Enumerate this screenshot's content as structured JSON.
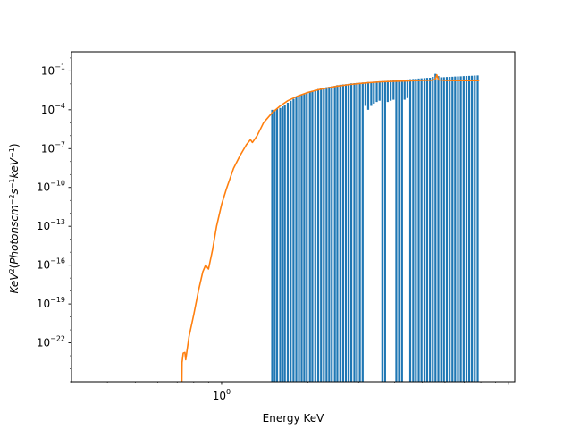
{
  "chart_data": {
    "type": "line",
    "xlabel": "Energy KeV",
    "ylabel": {
      "parts": [
        {
          "t": "KeV",
          "it": true
        },
        {
          "t": "2",
          "sup": true
        },
        {
          "t": "(",
          "it": false
        },
        {
          "t": "Photonscm",
          "it": true
        },
        {
          "t": "−2",
          "sup": true
        },
        {
          "t": "s",
          "it": true
        },
        {
          "t": "−1",
          "sup": true
        },
        {
          "t": "keV",
          "it": true
        },
        {
          "t": "−1",
          "sup": true
        },
        {
          "t": ")",
          "it": false
        }
      ]
    },
    "x_scale": "log",
    "y_scale": "log",
    "xlim": [
      0.3,
      10.5
    ],
    "ylim": [
      1e-25,
      3
    ],
    "x_ticks": [
      {
        "value": 1,
        "base": "10",
        "exp": "0"
      }
    ],
    "y_ticks": [
      {
        "value": 1e-22,
        "base": "10",
        "exp": "−22"
      },
      {
        "value": 1e-19,
        "base": "10",
        "exp": "−19"
      },
      {
        "value": 1e-16,
        "base": "10",
        "exp": "−16"
      },
      {
        "value": 1e-13,
        "base": "10",
        "exp": "−13"
      },
      {
        "value": 1e-10,
        "base": "10",
        "exp": "−10"
      },
      {
        "value": 1e-07,
        "base": "10",
        "exp": "−7"
      },
      {
        "value": 0.0001,
        "base": "10",
        "exp": "−4"
      },
      {
        "value": 0.1,
        "base": "10",
        "exp": "−1"
      }
    ],
    "grid": false,
    "colors": {
      "data": "#1f77b4",
      "model": "#ff7f0e"
    },
    "series": [
      {
        "kind": "error_bars",
        "x": [
          1.5,
          1.53,
          1.56,
          1.6,
          1.63,
          1.66,
          1.7,
          1.74,
          1.78,
          1.82,
          1.86,
          1.9,
          1.94,
          1.98,
          2.03,
          2.07,
          2.12,
          2.17,
          2.22,
          2.27,
          2.32,
          2.37,
          2.42,
          2.48,
          2.53,
          2.59,
          2.65,
          2.71,
          2.77,
          2.83,
          2.9,
          2.96,
          3.03,
          3.1,
          3.17,
          3.24,
          3.32,
          3.39,
          3.47,
          3.55,
          3.63,
          3.71,
          3.79,
          3.88,
          3.97,
          4.06,
          4.15,
          4.25,
          4.34,
          4.44,
          4.54,
          4.65,
          4.75,
          4.86,
          4.97,
          5.09,
          5.2,
          5.32,
          5.44,
          5.56,
          5.69,
          5.82,
          5.95,
          6.09,
          6.23,
          6.37,
          6.51,
          6.66,
          6.81,
          6.97,
          7.13,
          7.29,
          7.45,
          7.62,
          7.8
        ],
        "top": [
          0.0001,
          0.0001,
          0.00012,
          0.00014,
          0.00018,
          0.00025,
          0.00035,
          0.0005,
          0.0007,
          0.0009,
          0.0012,
          0.0015,
          0.0018,
          0.0022,
          0.0026,
          0.003,
          0.0035,
          0.004,
          0.0045,
          0.005,
          0.0055,
          0.006,
          0.0065,
          0.0072,
          0.008,
          0.0085,
          0.009,
          0.0095,
          0.01,
          0.011,
          0.0115,
          0.012,
          0.0125,
          0.013,
          0.0135,
          0.014,
          0.0145,
          0.015,
          0.0155,
          0.016,
          0.0165,
          0.017,
          0.0175,
          0.018,
          0.0185,
          0.019,
          0.0195,
          0.02,
          0.021,
          0.022,
          0.023,
          0.024,
          0.025,
          0.026,
          0.027,
          0.028,
          0.029,
          0.03,
          0.035,
          0.06,
          0.04,
          0.032,
          0.033,
          0.034,
          0.035,
          0.036,
          0.037,
          0.038,
          0.039,
          0.04,
          0.041,
          0.042,
          0.043,
          0.044,
          0.045
        ],
        "bottom": [
          1e-25,
          1e-25,
          1e-25,
          1e-25,
          1e-25,
          1e-25,
          1e-25,
          1e-25,
          1e-25,
          1e-25,
          1e-25,
          1e-25,
          1e-25,
          1e-25,
          1e-25,
          1e-25,
          1e-25,
          1e-25,
          1e-25,
          1e-25,
          1e-25,
          1e-25,
          1e-25,
          1e-25,
          1e-25,
          1e-25,
          1e-25,
          1e-25,
          1e-25,
          1e-25,
          1e-25,
          1e-25,
          1e-25,
          1e-25,
          0.0002,
          0.0001,
          0.0002,
          0.0003,
          0.0004,
          0.0005,
          1e-25,
          1e-25,
          0.0004,
          0.0005,
          0.0006,
          1e-25,
          1e-25,
          1e-25,
          0.0006,
          0.0008,
          1e-25,
          1e-25,
          1e-25,
          1e-25,
          1e-25,
          1e-25,
          1e-25,
          1e-25,
          1e-25,
          1e-25,
          1e-25,
          1e-25,
          1e-25,
          1e-25,
          1e-25,
          1e-25,
          1e-25,
          1e-25,
          1e-25,
          1e-25,
          1e-25,
          1e-25,
          1e-25,
          1e-25,
          1e-25
        ]
      },
      {
        "kind": "line",
        "x": [
          0.727,
          0.728,
          0.735,
          0.745,
          0.75,
          0.755,
          0.77,
          0.8,
          0.83,
          0.86,
          0.88,
          0.9,
          0.93,
          0.96,
          1.0,
          1.04,
          1.1,
          1.16,
          1.22,
          1.26,
          1.28,
          1.33,
          1.4,
          1.5,
          1.6,
          1.7,
          1.85,
          2.0,
          2.2,
          2.5,
          2.8,
          3.2,
          3.6,
          4.0,
          4.5,
          5.0,
          5.4,
          5.55,
          5.62,
          5.7,
          6.0,
          6.5,
          7.0,
          7.5,
          7.9
        ],
        "y": [
          1e-25,
          3e-24,
          1.6e-23,
          1.8e-23,
          5e-24,
          1.5e-23,
          3e-22,
          1.5e-20,
          1e-18,
          3e-17,
          1e-16,
          5e-17,
          1.5e-15,
          1e-13,
          5e-12,
          8e-11,
          3e-09,
          3e-08,
          2e-07,
          5e-07,
          3e-07,
          1e-06,
          1e-05,
          6e-05,
          0.0002,
          0.0005,
          0.0012,
          0.0022,
          0.0038,
          0.0065,
          0.009,
          0.012,
          0.0145,
          0.016,
          0.0175,
          0.0185,
          0.019,
          0.022,
          0.05,
          0.02,
          0.0185,
          0.018,
          0.018,
          0.0182,
          0.018
        ]
      }
    ]
  }
}
